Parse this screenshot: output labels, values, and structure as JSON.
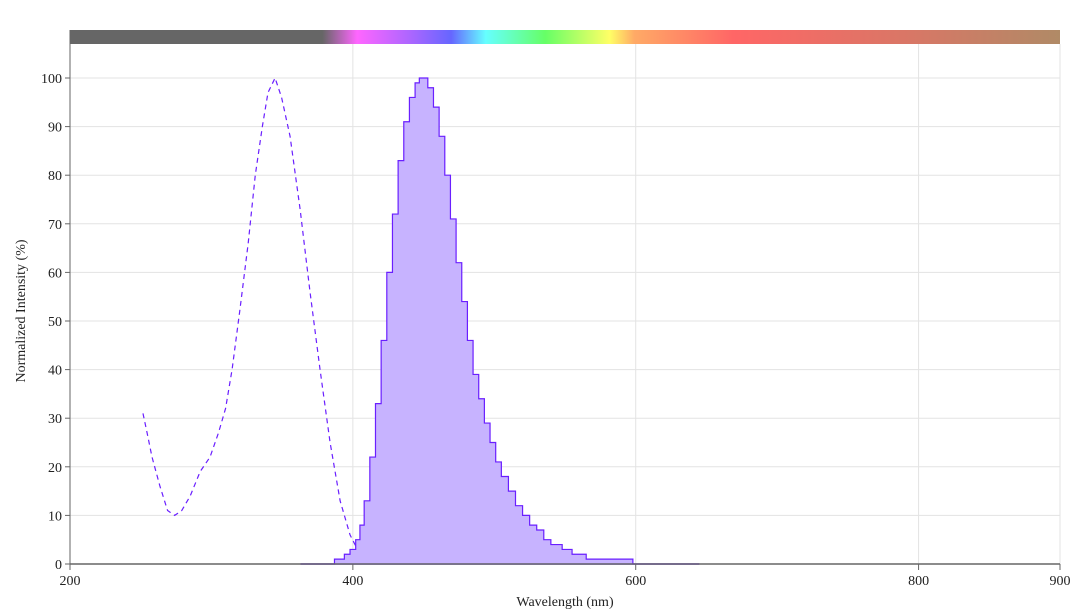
{
  "chart_data": {
    "type": "area",
    "xlabel": "Wavelength (nm)",
    "ylabel": "Normalized Intensity (%)",
    "xlim": [
      200,
      900
    ],
    "ylim": [
      0,
      100
    ],
    "xticks": [
      200,
      400,
      600,
      800,
      900
    ],
    "yticks": [
      0,
      10,
      20,
      30,
      40,
      50,
      60,
      70,
      80,
      90,
      100
    ],
    "grid": true,
    "legend": "none",
    "spectrum_bar": true,
    "colors": {
      "line": "#6a1fff",
      "fill": "#c7b3ff",
      "baseline": "#b99cff",
      "axis": "#666666",
      "grid": "#e3e3e3"
    },
    "series": [
      {
        "style": "dashed",
        "x": [
          251.6,
          254.5,
          258,
          263.6,
          269,
          274,
          279,
          285,
          292,
          299,
          305,
          310,
          314.6,
          320,
          326,
          331,
          336,
          340,
          345,
          349.6,
          355.6,
          362.7,
          369.7,
          376.8,
          383.9,
          391,
          398,
          405,
          415.7
        ],
        "y": [
          31,
          27,
          22,
          16,
          11,
          10,
          11,
          14,
          19,
          22,
          27,
          32,
          40,
          52,
          66,
          80,
          90,
          97,
          100,
          96,
          88,
          73,
          56,
          40,
          25,
          13,
          6,
          2,
          0.5
        ]
      },
      {
        "style": "filled",
        "x": [
          363,
          386,
          387,
          392,
          394,
          398,
          402,
          405,
          408,
          412,
          416,
          420,
          424,
          428,
          432,
          436,
          440,
          444,
          447,
          450,
          453,
          457,
          461,
          465,
          469,
          473,
          477,
          481,
          485,
          489,
          493,
          497,
          501,
          505,
          510,
          515,
          520,
          525,
          530,
          535,
          540,
          548,
          555,
          565,
          575,
          597,
          598,
          645
        ],
        "y": [
          0,
          0,
          1,
          1,
          2,
          3,
          5,
          8,
          13,
          22,
          33,
          46,
          60,
          72,
          83,
          91,
          96,
          99,
          100,
          100,
          98,
          94,
          88,
          80,
          71,
          62,
          54,
          46,
          39,
          34,
          29,
          25,
          21,
          18,
          15,
          12,
          10,
          8,
          7,
          5,
          4,
          3,
          2,
          1,
          1,
          1,
          0,
          0
        ]
      }
    ]
  }
}
